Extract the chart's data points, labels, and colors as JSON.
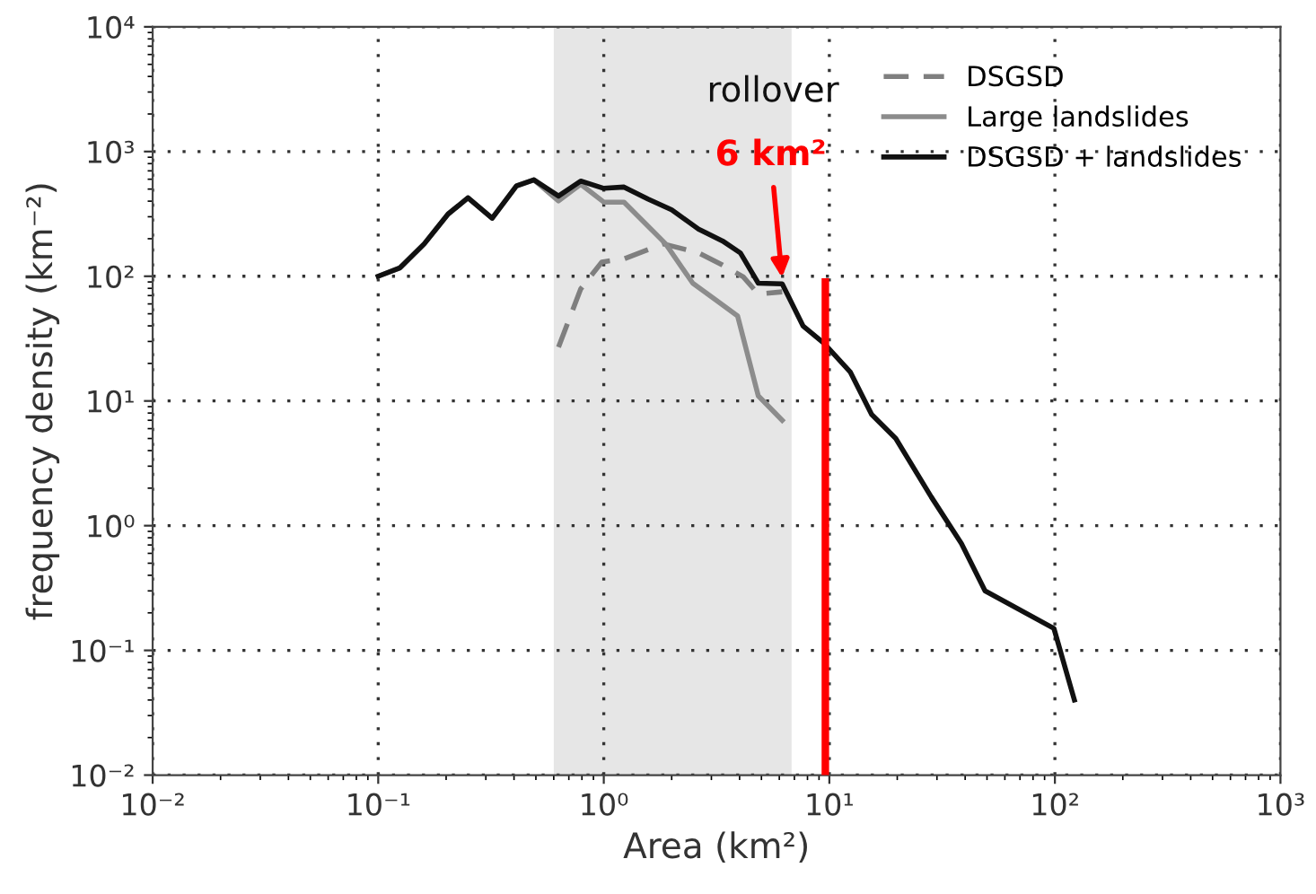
{
  "chart_data": {
    "type": "line",
    "xlabel": "Area (km²)",
    "ylabel": "frequency density (km⁻²)",
    "log": "xy",
    "xlim": [
      0.01,
      1000
    ],
    "ylim": [
      0.01,
      10000
    ],
    "xticks": [
      {
        "value": 0.01,
        "label": "10⁻²"
      },
      {
        "value": 0.1,
        "label": "10⁻¹"
      },
      {
        "value": 1,
        "label": "10⁰"
      },
      {
        "value": 10,
        "label": "10¹"
      },
      {
        "value": 100,
        "label": "10²"
      },
      {
        "value": 1000,
        "label": "10³"
      }
    ],
    "yticks": [
      {
        "value": 0.01,
        "label": "10⁻²"
      },
      {
        "value": 0.1,
        "label": "10⁻¹"
      },
      {
        "value": 1,
        "label": "10⁰"
      },
      {
        "value": 10,
        "label": "10¹"
      },
      {
        "value": 100,
        "label": "10²"
      },
      {
        "value": 1000,
        "label": "10³"
      },
      {
        "value": 10000,
        "label": "10⁴"
      }
    ],
    "grid": true,
    "legend": "top right",
    "series": [
      {
        "name": "DSGSD",
        "color": "#7f7f7f",
        "line_style": "dashed",
        "x": [
          0.63,
          0.79,
          0.98,
          1.23,
          1.83,
          2.63,
          3.36,
          4.15,
          4.84,
          6.18
        ],
        "values": [
          27,
          79,
          130,
          138,
          182,
          154,
          123,
          99,
          72,
          75
        ]
      },
      {
        "name": "Large landslides",
        "color": "#8c8c8c",
        "line_style": "solid",
        "x": [
          0.1,
          0.125,
          0.16,
          0.204,
          0.25,
          0.32,
          0.41,
          0.49,
          0.63,
          0.79,
          1.0,
          1.23,
          1.88,
          2.48,
          3.16,
          3.92,
          4.84,
          6.18
        ],
        "values": [
          100,
          117,
          182,
          315,
          425,
          292,
          530,
          593,
          402,
          547,
          393,
          393,
          182,
          88,
          64,
          48,
          11,
          7
        ]
      },
      {
        "name": "DSGSD + landslides",
        "color": "#111111",
        "line_style": "solid",
        "x": [
          0.1,
          0.125,
          0.16,
          0.204,
          0.25,
          0.32,
          0.41,
          0.49,
          0.63,
          0.79,
          1.0,
          1.23,
          1.57,
          2.0,
          2.63,
          3.36,
          4.03,
          4.84,
          6.18,
          7.64,
          9.46,
          12.4,
          15.4,
          19.7,
          28.3,
          38.5,
          49,
          99,
          122
        ],
        "values": [
          100,
          117,
          182,
          315,
          425,
          292,
          530,
          593,
          440,
          580,
          507,
          519,
          416,
          341,
          239,
          192,
          154,
          88,
          87,
          40,
          29,
          17,
          7.8,
          5.0,
          1.7,
          0.72,
          0.3,
          0.15,
          0.04
        ]
      },
      {
        "color": "#ff0000",
        "line_style": "solid",
        "x": [
          9.6,
          9.6
        ],
        "values": [
          0.01,
          90
        ]
      }
    ],
    "bands": [
      {
        "axis": "x",
        "from": 0.6,
        "to": 6.8,
        "color": "#e6e6e6"
      }
    ],
    "annotations": [
      "rollover",
      "6 km²"
    ]
  }
}
